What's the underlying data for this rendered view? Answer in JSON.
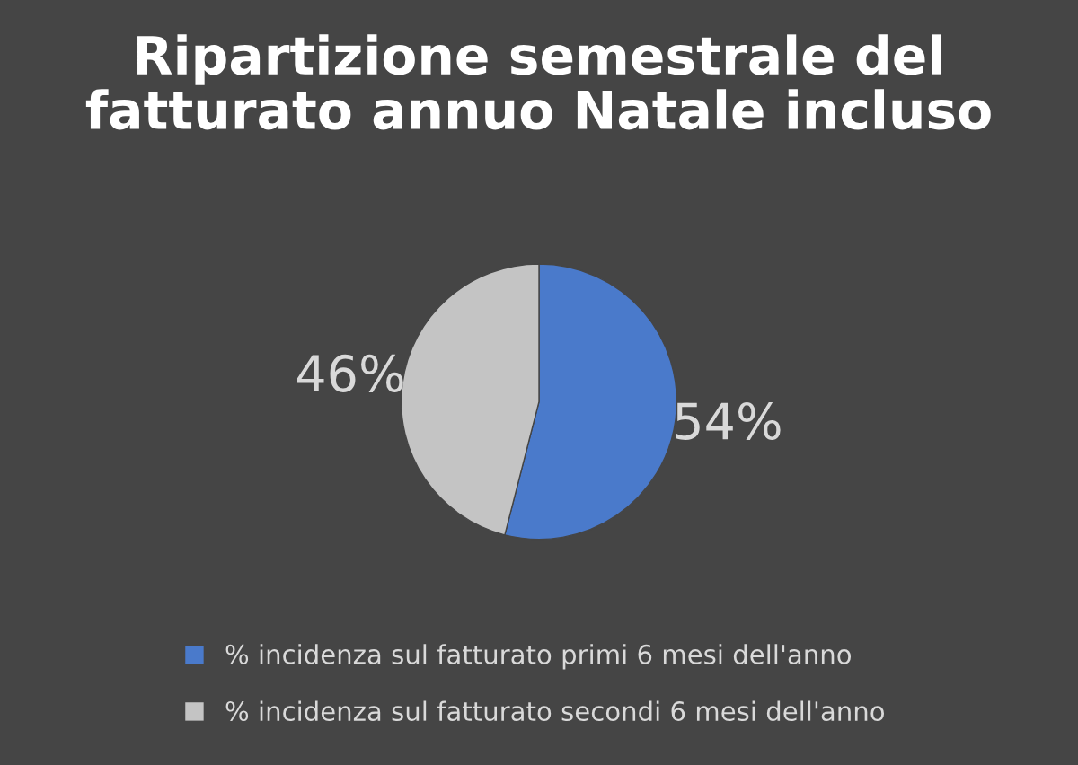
{
  "chart_data": {
    "type": "pie",
    "title": "Ripartizione semestrale del\nfatturato annuo Natale incluso",
    "categories": [
      "% incidenza sul fatturato primi 6 mesi dell'anno",
      "% incidenza sul fatturato secondi 6 mesi dell'anno"
    ],
    "values": [
      54,
      46
    ],
    "colors": [
      "#4a7acb",
      "#c4c4c4"
    ],
    "value_labels": [
      "54%",
      "46%"
    ],
    "legend": "bottom"
  }
}
